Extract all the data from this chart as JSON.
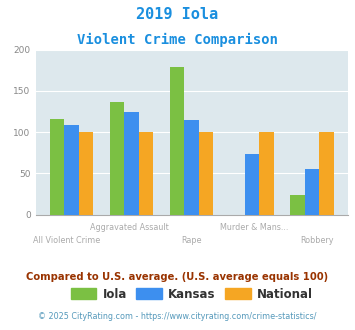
{
  "title_line1": "2019 Iola",
  "title_line2": "Violent Crime Comparison",
  "categories": [
    "All Violent Crime",
    "Aggravated Assault",
    "Rape",
    "Murder & Mans...",
    "Robbery"
  ],
  "iola": [
    116,
    136,
    179,
    0,
    24
  ],
  "kansas": [
    108,
    124,
    114,
    73,
    55
  ],
  "national": [
    100,
    100,
    100,
    100,
    100
  ],
  "iola_color": "#7bc043",
  "kansas_color": "#3d8fef",
  "national_color": "#f5a623",
  "bg_color": "#dde8ed",
  "title_color": "#1a8fdf",
  "xlabel_color_top": "#aaaaaa",
  "xlabel_color_bot": "#aaaaaa",
  "ytick_color": "#888888",
  "ylim": [
    0,
    200
  ],
  "yticks": [
    0,
    50,
    100,
    150,
    200
  ],
  "subtitle_text": "Compared to U.S. average. (U.S. average equals 100)",
  "footer_text": "© 2025 CityRating.com - https://www.cityrating.com/crime-statistics/",
  "subtitle_color": "#993300",
  "footer_color": "#5599bb",
  "cat_top": [
    "",
    "Aggravated Assault",
    "",
    "Murder & Mans...",
    ""
  ],
  "cat_bottom": [
    "All Violent Crime",
    "",
    "Rape",
    "",
    "Robbery"
  ]
}
